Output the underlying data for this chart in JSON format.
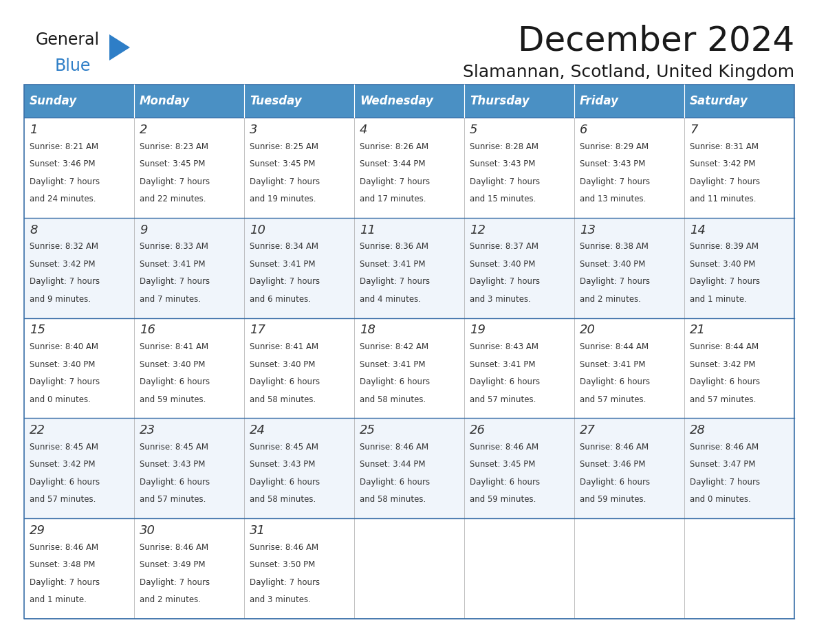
{
  "title": "December 2024",
  "subtitle": "Slamannan, Scotland, United Kingdom",
  "header_color": "#4a90c4",
  "header_text_color": "#ffffff",
  "border_color": "#3a6fa8",
  "text_color": "#333333",
  "day_headers": [
    "Sunday",
    "Monday",
    "Tuesday",
    "Wednesday",
    "Thursday",
    "Friday",
    "Saturday"
  ],
  "weeks": [
    [
      {
        "day": "1",
        "sunrise": "8:21 AM",
        "sunset": "3:46 PM",
        "daylight_h": "7 hours",
        "daylight_m": "and 24 minutes."
      },
      {
        "day": "2",
        "sunrise": "8:23 AM",
        "sunset": "3:45 PM",
        "daylight_h": "7 hours",
        "daylight_m": "and 22 minutes."
      },
      {
        "day": "3",
        "sunrise": "8:25 AM",
        "sunset": "3:45 PM",
        "daylight_h": "7 hours",
        "daylight_m": "and 19 minutes."
      },
      {
        "day": "4",
        "sunrise": "8:26 AM",
        "sunset": "3:44 PM",
        "daylight_h": "7 hours",
        "daylight_m": "and 17 minutes."
      },
      {
        "day": "5",
        "sunrise": "8:28 AM",
        "sunset": "3:43 PM",
        "daylight_h": "7 hours",
        "daylight_m": "and 15 minutes."
      },
      {
        "day": "6",
        "sunrise": "8:29 AM",
        "sunset": "3:43 PM",
        "daylight_h": "7 hours",
        "daylight_m": "and 13 minutes."
      },
      {
        "day": "7",
        "sunrise": "8:31 AM",
        "sunset": "3:42 PM",
        "daylight_h": "7 hours",
        "daylight_m": "and 11 minutes."
      }
    ],
    [
      {
        "day": "8",
        "sunrise": "8:32 AM",
        "sunset": "3:42 PM",
        "daylight_h": "7 hours",
        "daylight_m": "and 9 minutes."
      },
      {
        "day": "9",
        "sunrise": "8:33 AM",
        "sunset": "3:41 PM",
        "daylight_h": "7 hours",
        "daylight_m": "and 7 minutes."
      },
      {
        "day": "10",
        "sunrise": "8:34 AM",
        "sunset": "3:41 PM",
        "daylight_h": "7 hours",
        "daylight_m": "and 6 minutes."
      },
      {
        "day": "11",
        "sunrise": "8:36 AM",
        "sunset": "3:41 PM",
        "daylight_h": "7 hours",
        "daylight_m": "and 4 minutes."
      },
      {
        "day": "12",
        "sunrise": "8:37 AM",
        "sunset": "3:40 PM",
        "daylight_h": "7 hours",
        "daylight_m": "and 3 minutes."
      },
      {
        "day": "13",
        "sunrise": "8:38 AM",
        "sunset": "3:40 PM",
        "daylight_h": "7 hours",
        "daylight_m": "and 2 minutes."
      },
      {
        "day": "14",
        "sunrise": "8:39 AM",
        "sunset": "3:40 PM",
        "daylight_h": "7 hours",
        "daylight_m": "and 1 minute."
      }
    ],
    [
      {
        "day": "15",
        "sunrise": "8:40 AM",
        "sunset": "3:40 PM",
        "daylight_h": "7 hours",
        "daylight_m": "and 0 minutes."
      },
      {
        "day": "16",
        "sunrise": "8:41 AM",
        "sunset": "3:40 PM",
        "daylight_h": "6 hours",
        "daylight_m": "and 59 minutes."
      },
      {
        "day": "17",
        "sunrise": "8:41 AM",
        "sunset": "3:40 PM",
        "daylight_h": "6 hours",
        "daylight_m": "and 58 minutes."
      },
      {
        "day": "18",
        "sunrise": "8:42 AM",
        "sunset": "3:41 PM",
        "daylight_h": "6 hours",
        "daylight_m": "and 58 minutes."
      },
      {
        "day": "19",
        "sunrise": "8:43 AM",
        "sunset": "3:41 PM",
        "daylight_h": "6 hours",
        "daylight_m": "and 57 minutes."
      },
      {
        "day": "20",
        "sunrise": "8:44 AM",
        "sunset": "3:41 PM",
        "daylight_h": "6 hours",
        "daylight_m": "and 57 minutes."
      },
      {
        "day": "21",
        "sunrise": "8:44 AM",
        "sunset": "3:42 PM",
        "daylight_h": "6 hours",
        "daylight_m": "and 57 minutes."
      }
    ],
    [
      {
        "day": "22",
        "sunrise": "8:45 AM",
        "sunset": "3:42 PM",
        "daylight_h": "6 hours",
        "daylight_m": "and 57 minutes."
      },
      {
        "day": "23",
        "sunrise": "8:45 AM",
        "sunset": "3:43 PM",
        "daylight_h": "6 hours",
        "daylight_m": "and 57 minutes."
      },
      {
        "day": "24",
        "sunrise": "8:45 AM",
        "sunset": "3:43 PM",
        "daylight_h": "6 hours",
        "daylight_m": "and 58 minutes."
      },
      {
        "day": "25",
        "sunrise": "8:46 AM",
        "sunset": "3:44 PM",
        "daylight_h": "6 hours",
        "daylight_m": "and 58 minutes."
      },
      {
        "day": "26",
        "sunrise": "8:46 AM",
        "sunset": "3:45 PM",
        "daylight_h": "6 hours",
        "daylight_m": "and 59 minutes."
      },
      {
        "day": "27",
        "sunrise": "8:46 AM",
        "sunset": "3:46 PM",
        "daylight_h": "6 hours",
        "daylight_m": "and 59 minutes."
      },
      {
        "day": "28",
        "sunrise": "8:46 AM",
        "sunset": "3:47 PM",
        "daylight_h": "7 hours",
        "daylight_m": "and 0 minutes."
      }
    ],
    [
      {
        "day": "29",
        "sunrise": "8:46 AM",
        "sunset": "3:48 PM",
        "daylight_h": "7 hours",
        "daylight_m": "and 1 minute."
      },
      {
        "day": "30",
        "sunrise": "8:46 AM",
        "sunset": "3:49 PM",
        "daylight_h": "7 hours",
        "daylight_m": "and 2 minutes."
      },
      {
        "day": "31",
        "sunrise": "8:46 AM",
        "sunset": "3:50 PM",
        "daylight_h": "7 hours",
        "daylight_m": "and 3 minutes."
      },
      null,
      null,
      null,
      null
    ]
  ],
  "logo_general_color": "#1a1a1a",
  "logo_blue_color": "#2e7ec7",
  "logo_triangle_color": "#2e7ec7",
  "title_fontsize": 36,
  "subtitle_fontsize": 18,
  "header_fontsize": 12,
  "day_num_fontsize": 13,
  "cell_fontsize": 8.5
}
